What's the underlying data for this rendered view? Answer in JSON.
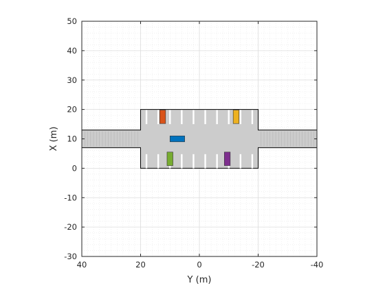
{
  "chart_data": {
    "type": "scene-plot",
    "xlabel": "Y (m)",
    "ylabel": "X (m)",
    "xlim": [
      40,
      -40
    ],
    "ylim": [
      -30,
      50
    ],
    "x_reversed": true,
    "x_ticks": [
      40,
      20,
      0,
      -20,
      -40
    ],
    "y_ticks": [
      50,
      40,
      30,
      20,
      10,
      0,
      -10,
      -20,
      -30
    ],
    "x_tick_labels": [
      "40",
      "20",
      "0",
      "-20",
      "-40"
    ],
    "y_tick_labels": [
      "50",
      "40",
      "30",
      "20",
      "10",
      "0",
      "-10",
      "-20",
      "-30"
    ],
    "grid": true,
    "minor_grid": true,
    "minor_step": 2,
    "road": {
      "road_color": "#cccccc",
      "outline": [
        [
          40,
          13
        ],
        [
          20,
          13
        ],
        [
          20,
          20
        ],
        [
          -20,
          20
        ],
        [
          -20,
          13
        ],
        [
          -40,
          13
        ],
        [
          -40,
          7
        ],
        [
          -20,
          7
        ],
        [
          -20,
          0
        ],
        [
          20,
          0
        ],
        [
          20,
          7
        ],
        [
          40,
          7
        ]
      ],
      "lane_stripes_y": [
        [
          40,
          20
        ],
        [
          -20,
          -40
        ]
      ],
      "lane_stripes_x": [
        7,
        13
      ],
      "parking_stripes_y": [
        18,
        14,
        10,
        6,
        2,
        -2,
        -6,
        -10,
        -14,
        -18
      ],
      "parking_rows": [
        [
          15,
          20
        ],
        [
          0,
          5
        ]
      ]
    },
    "vehicles": [
      {
        "name": "ego",
        "color": "#0072bd",
        "y_center": 7.5,
        "x_center": 10,
        "length_y": 5,
        "width_x": 2
      },
      {
        "name": "parked",
        "color": "#d95319",
        "y_center": 12.5,
        "x_center": 17.5,
        "length_y": 2,
        "width_x": 4.6
      },
      {
        "name": "parked",
        "color": "#edb120",
        "y_center": -12.5,
        "x_center": 17.5,
        "length_y": 2,
        "width_x": 4.6
      },
      {
        "name": "parked",
        "color": "#77ac30",
        "y_center": 10,
        "x_center": 3.2,
        "length_y": 2,
        "width_x": 4.6
      },
      {
        "name": "parked",
        "color": "#7e2f8e",
        "y_center": -9.5,
        "x_center": 3.2,
        "length_y": 2,
        "width_x": 4.6
      }
    ]
  },
  "colors": {
    "axis": "#262626",
    "grid_major": "#dcdcdc",
    "grid_minor": "#e8e8e8",
    "background": "#ffffff"
  }
}
